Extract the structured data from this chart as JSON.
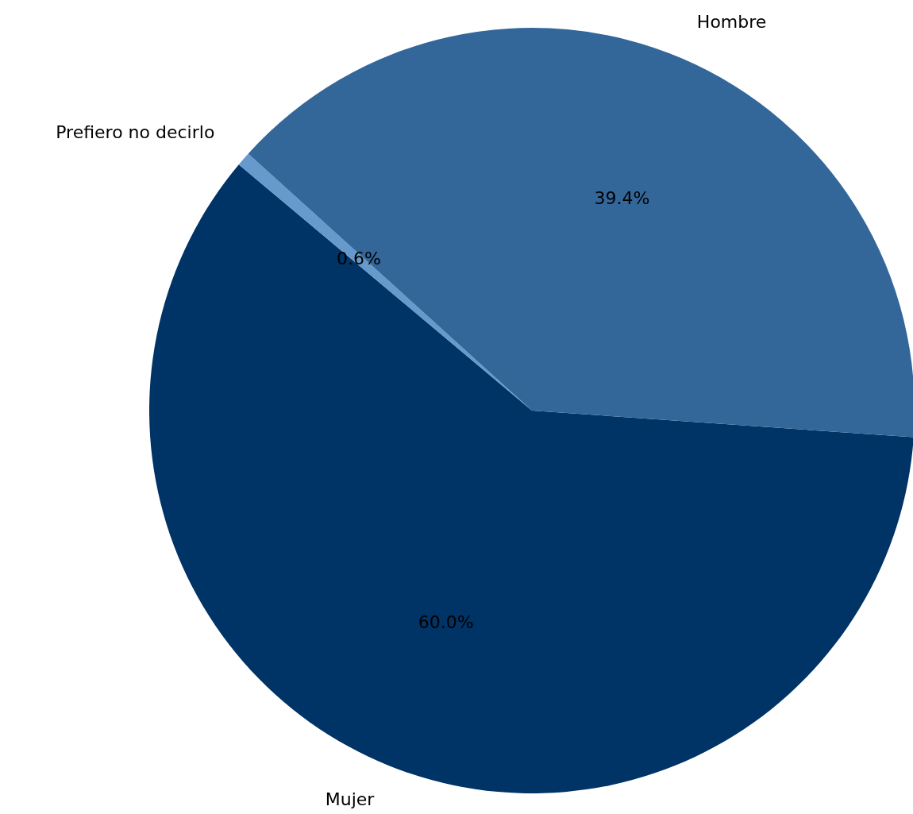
{
  "chart_data": {
    "type": "pie",
    "categories": [
      "Mujer",
      "Prefiero no decirlo",
      "Hombre"
    ],
    "values": [
      60.0,
      0.6,
      39.4
    ],
    "colors": [
      "#003366",
      "#6699cc",
      "#336699"
    ],
    "value_labels": [
      "60.0%",
      "0.6%",
      "39.4%"
    ],
    "legend": false
  }
}
